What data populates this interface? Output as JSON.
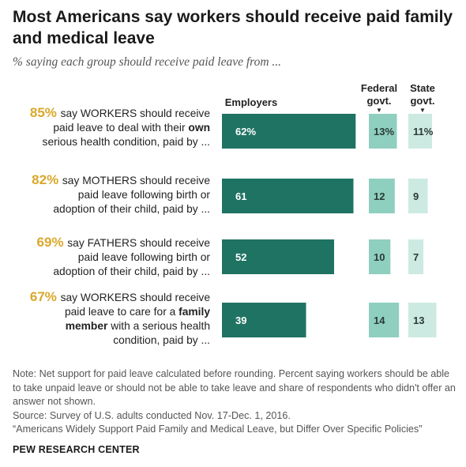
{
  "title": "Most Americans say workers should receive paid family and medical leave",
  "subtitle": "% saying each group should receive paid leave from ...",
  "columns": {
    "employers": "Employers",
    "federal_l1": "Federal",
    "federal_l2": "govt.",
    "state_l1": "State",
    "state_l2": "govt."
  },
  "rows": [
    {
      "pct": "85%",
      "lines": [
        [
          {
            "t": "say WORKERS should receive",
            "b": false
          }
        ],
        [
          {
            "t": "paid leave to deal with their ",
            "b": false
          },
          {
            "t": "own",
            "b": true
          }
        ],
        [
          {
            "t": "serious health condition, paid by ...",
            "b": false
          }
        ]
      ]
    },
    {
      "pct": "82%",
      "lines": [
        [
          {
            "t": "say MOTHERS should receive",
            "b": false
          }
        ],
        [
          {
            "t": "paid leave following birth or",
            "b": false
          }
        ],
        [
          {
            "t": "adoption of their child, paid by ...",
            "b": false
          }
        ]
      ]
    },
    {
      "pct": "69%",
      "lines": [
        [
          {
            "t": "say FATHERS should receive",
            "b": false
          }
        ],
        [
          {
            "t": "paid leave following birth or",
            "b": false
          }
        ],
        [
          {
            "t": "adoption of their child, paid by ...",
            "b": false
          }
        ]
      ]
    },
    {
      "pct": "67%",
      "lines": [
        [
          {
            "t": "say WORKERS should receive",
            "b": false
          }
        ],
        [
          {
            "t": "paid leave to care for a ",
            "b": false
          },
          {
            "t": "family",
            "b": true
          }
        ],
        [
          {
            "t": "member",
            "b": true
          },
          {
            "t": " with a serious health",
            "b": false
          }
        ],
        [
          {
            "t": "condition, paid by ...",
            "b": false
          }
        ]
      ]
    }
  ],
  "chart_data": {
    "type": "bar",
    "categories": [
      "85% say WORKERS should receive paid leave to deal with their own serious health condition, paid by ...",
      "82% say MOTHERS should receive paid leave following birth or adoption of their child, paid by ...",
      "69% say FATHERS should receive paid leave following birth or adoption of their child, paid by ...",
      "67% say WORKERS should receive paid leave to care for a family member with a serious health condition, paid by ..."
    ],
    "series": [
      {
        "name": "Employers",
        "values": [
          62,
          61,
          52,
          39
        ],
        "labels": [
          "62%",
          "61",
          "52",
          "39"
        ],
        "color": "#1f7363"
      },
      {
        "name": "Federal govt.",
        "values": [
          13,
          12,
          10,
          14
        ],
        "labels": [
          "13%",
          "12",
          "10",
          "14"
        ],
        "color": "#8fcfbf"
      },
      {
        "name": "State govt.",
        "values": [
          11,
          9,
          7,
          13
        ],
        "labels": [
          "11%",
          "9",
          "7",
          "13"
        ],
        "color": "#cdeae2"
      }
    ]
  },
  "notes": [
    "Note: Net support for paid leave calculated before rounding. Percent saying workers should be able to take unpaid leave or should not be able to take leave and share of respondents who didn't offer an answer not shown.",
    "Source: Survey of U.S. adults conducted Nov. 17-Dec. 1, 2016.",
    "“Americans Widely Support Paid Family and Medical Leave, but Differ Over Specific Policies”"
  ],
  "brand": "PEW RESEARCH CENTER"
}
